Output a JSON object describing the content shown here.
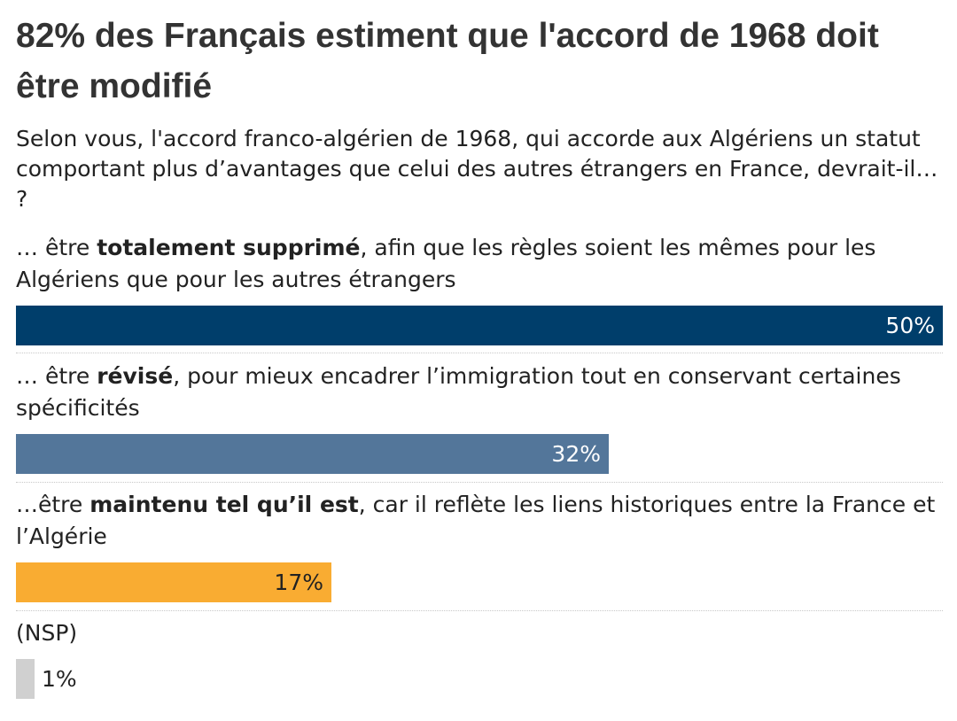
{
  "title": "82% des Français estiment que l'accord de 1968 doit être modifié",
  "subtitle": "Selon vous, l'accord franco-algérien de 1968, qui accorde aux Algériens un statut comportant plus d’avantages que celui des autres étrangers en France, devrait-il… ?",
  "chart_data": {
    "type": "bar",
    "orientation": "horizontal",
    "title": "82% des Français estiment que l'accord de 1968 doit être modifié",
    "subtitle": "Selon vous, l'accord franco-algérien de 1968, qui accorde aux Algériens un statut comportant plus d’avantages que celui des autres étrangers en France, devrait-il… ?",
    "xlim": [
      0,
      50
    ],
    "grid": false,
    "categories": [
      "… être totalement supprimé, afin que les règles soient les mêmes pour les Algériens que pour les autres étrangers",
      "… être révisé, pour mieux encadrer l’immigration tout en conservant certaines spécificités",
      "…être maintenu tel qu’il est, car il reflète les liens historiques entre la France et l’Algérie",
      "(NSP)"
    ],
    "values": [
      50,
      32,
      17,
      1
    ],
    "value_labels": [
      "50%",
      "32%",
      "17%",
      "1%"
    ],
    "rows": [
      {
        "prefix": "… être ",
        "bold": "totalement supprimé",
        "suffix": ", afin que les règles soient les mêmes pour les Algériens que pour les autres étrangers",
        "value": 50,
        "label": "50%",
        "color": "#003e6b",
        "text_color": "#ffffff"
      },
      {
        "prefix": "… être ",
        "bold": "révisé",
        "suffix": ", pour mieux encadrer l’immigration tout en conservant certaines spécificités",
        "value": 32,
        "label": "32%",
        "color": "#53769a",
        "text_color": "#ffffff"
      },
      {
        "prefix": "…être ",
        "bold": "maintenu tel qu’il est",
        "suffix": ", car il reflète les liens historiques entre la France et l’Algérie",
        "value": 17,
        "label": "17%",
        "color": "#f9ac32",
        "text_color": "#222222"
      },
      {
        "prefix": "(NSP)",
        "bold": "",
        "suffix": "",
        "value": 1,
        "label": "1%",
        "color": "#d0d0d0",
        "text_color": "#222222"
      }
    ]
  }
}
